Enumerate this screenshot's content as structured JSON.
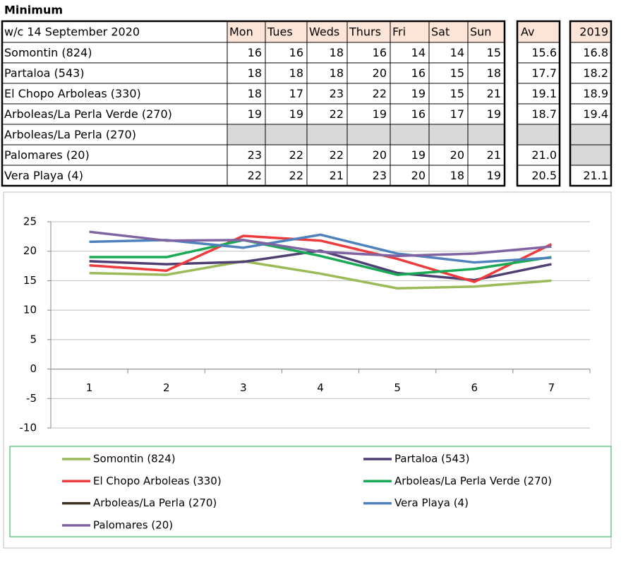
{
  "table": {
    "title": "Minimum",
    "header": [
      "w/c 14 September 2020",
      "Mon",
      "Tues",
      "Weds",
      "Thurs",
      "Fri",
      "Sat",
      "Sun"
    ],
    "av_header": "Av",
    "y2019_header": "2019",
    "rows": [
      {
        "name": "Somontin (824)",
        "values": [
          16,
          16,
          18,
          16,
          14,
          14,
          15
        ],
        "av": 15.6,
        "y2019": 16.8
      },
      {
        "name": "Partaloa (543)",
        "values": [
          18,
          18,
          18,
          20,
          16,
          15,
          18
        ],
        "av": 17.7,
        "y2019": 18.2
      },
      {
        "name": "El Chopo Arboleas (330)",
        "values": [
          18,
          17,
          23,
          22,
          19,
          15,
          21
        ],
        "av": 19.1,
        "y2019": 18.9
      },
      {
        "name": "Arboleas/La Perla Verde (270)",
        "values": [
          19,
          19,
          22,
          19,
          16,
          17,
          19
        ],
        "av": 18.7,
        "y2019": 19.4
      },
      {
        "name": "Arboleas/La Perla (270)",
        "values": [
          null,
          null,
          null,
          null,
          null,
          null,
          null
        ],
        "av": null,
        "y2019": null
      },
      {
        "name": "Palomares (20)",
        "values": [
          23,
          22,
          22,
          20,
          19,
          20,
          21
        ],
        "av": "21.0",
        "y2019": null
      },
      {
        "name": "Vera Playa (4)",
        "values": [
          22,
          22,
          21,
          23,
          20,
          18,
          19
        ],
        "av": 20.5,
        "y2019": 21.1
      }
    ]
  },
  "chart_data": {
    "type": "line",
    "categories": [
      1,
      2,
      3,
      4,
      5,
      6,
      7
    ],
    "ylim": [
      -10,
      25
    ],
    "yticks": [
      -10,
      -5,
      0,
      5,
      10,
      15,
      20,
      25
    ],
    "grid": true,
    "series": [
      {
        "name": "Somontin (824)",
        "color": "#9bbb59",
        "values": [
          16.3,
          16.0,
          18.3,
          16.2,
          13.7,
          14.0,
          15.0
        ]
      },
      {
        "name": "Partaloa (543)",
        "color": "#4f3f73",
        "values": [
          18.3,
          17.8,
          18.2,
          20.1,
          16.3,
          15.1,
          17.8
        ]
      },
      {
        "name": "El Chopo Arboleas (330)",
        "color": "#ee3b3b",
        "values": [
          17.6,
          16.7,
          22.6,
          21.8,
          18.7,
          14.8,
          21.2
        ]
      },
      {
        "name": "Arboleas/La Perla Verde (270)",
        "color": "#1aaa55",
        "values": [
          19.0,
          19.0,
          21.9,
          19.2,
          16.0,
          17.0,
          19.0
        ]
      },
      {
        "name": "Arboleas/La Perla (270)",
        "color": "#3b3020",
        "values": [
          null,
          null,
          null,
          null,
          null,
          null,
          null
        ]
      },
      {
        "name": "Vera Playa (4)",
        "color": "#4f81bd",
        "values": [
          21.6,
          21.9,
          20.6,
          22.8,
          19.6,
          18.1,
          18.9
        ]
      },
      {
        "name": "Palomares (20)",
        "color": "#8064a2",
        "values": [
          23.3,
          21.8,
          21.9,
          19.9,
          19.2,
          19.6,
          20.8
        ]
      }
    ]
  }
}
